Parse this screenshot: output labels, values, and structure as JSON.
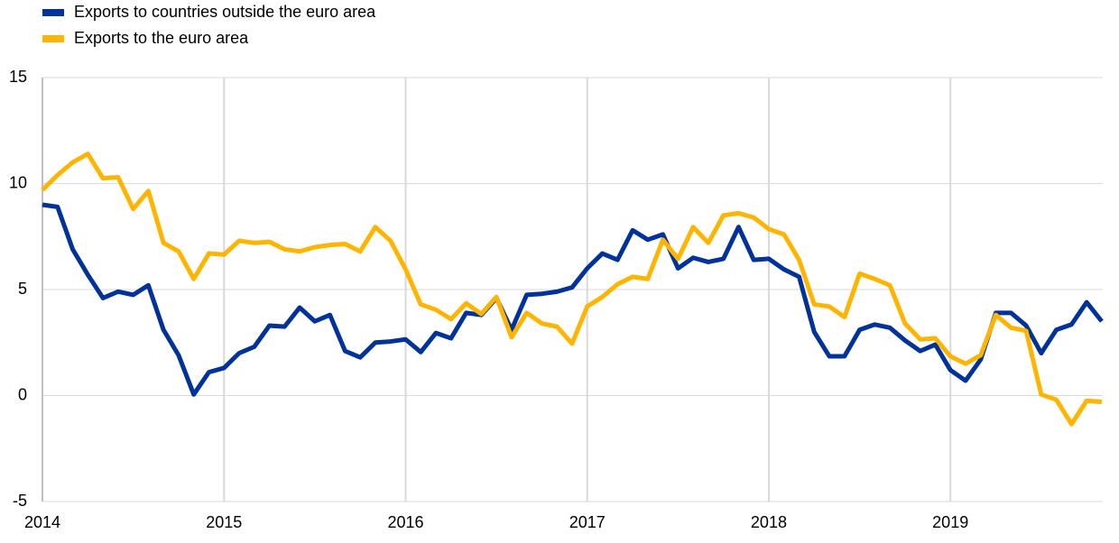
{
  "chart_data": {
    "type": "line",
    "categories": [
      "2014",
      null,
      null,
      null,
      null,
      null,
      null,
      null,
      null,
      null,
      null,
      null,
      "2015",
      null,
      null,
      null,
      null,
      null,
      null,
      null,
      null,
      null,
      null,
      null,
      "2016",
      null,
      null,
      null,
      null,
      null,
      null,
      null,
      null,
      null,
      null,
      null,
      "2017",
      null,
      null,
      null,
      null,
      null,
      null,
      null,
      null,
      null,
      null,
      null,
      "2018",
      null,
      null,
      null,
      null,
      null,
      null,
      null,
      null,
      null,
      null,
      null,
      "2019",
      null,
      null,
      null,
      null,
      null,
      null,
      null,
      null,
      null,
      null
    ],
    "series": [
      {
        "name": "Exports to countries outside the euro area",
        "color": "#003299",
        "values": [
          9.0,
          8.9,
          6.9,
          5.7,
          4.6,
          4.9,
          4.75,
          5.2,
          3.1,
          1.9,
          0.05,
          1.1,
          1.3,
          2.0,
          2.3,
          3.3,
          3.25,
          4.15,
          3.5,
          3.8,
          2.1,
          1.8,
          2.5,
          2.55,
          2.65,
          2.05,
          2.95,
          2.7,
          3.9,
          3.8,
          4.6,
          3.1,
          4.75,
          4.8,
          4.9,
          5.1,
          6.0,
          6.7,
          6.4,
          7.8,
          7.35,
          7.6,
          6.0,
          6.5,
          6.3,
          6.45,
          7.95,
          6.4,
          6.45,
          5.95,
          5.6,
          3.0,
          1.85,
          1.85,
          3.1,
          3.35,
          3.2,
          2.6,
          2.1,
          2.4,
          1.2,
          0.7,
          1.7,
          3.9,
          3.9,
          3.3,
          2.0,
          3.1,
          3.35,
          4.4,
          3.5
        ]
      },
      {
        "name": "Exports to the euro area",
        "color": "#ffb400",
        "values": [
          9.7,
          10.4,
          11.0,
          11.4,
          10.25,
          10.3,
          8.8,
          9.65,
          7.2,
          6.8,
          5.5,
          6.7,
          6.65,
          7.3,
          7.2,
          7.25,
          6.9,
          6.8,
          7.0,
          7.1,
          7.15,
          6.8,
          7.95,
          7.3,
          5.95,
          4.3,
          4.05,
          3.6,
          4.35,
          3.85,
          4.65,
          2.75,
          3.9,
          3.4,
          3.25,
          2.45,
          4.2,
          4.65,
          5.25,
          5.6,
          5.5,
          7.35,
          6.45,
          7.95,
          7.2,
          8.5,
          8.6,
          8.4,
          7.85,
          7.6,
          6.4,
          4.3,
          4.2,
          3.7,
          5.75,
          5.5,
          5.2,
          3.4,
          2.65,
          2.7,
          1.85,
          1.5,
          1.9,
          3.8,
          3.2,
          3.05,
          0.05,
          -0.2,
          -1.35,
          -0.25,
          -0.3
        ]
      }
    ],
    "ylim": [
      -5,
      15
    ],
    "yticks": [
      -5,
      0,
      5,
      10,
      15
    ],
    "grid": true,
    "legend": "top-left"
  }
}
